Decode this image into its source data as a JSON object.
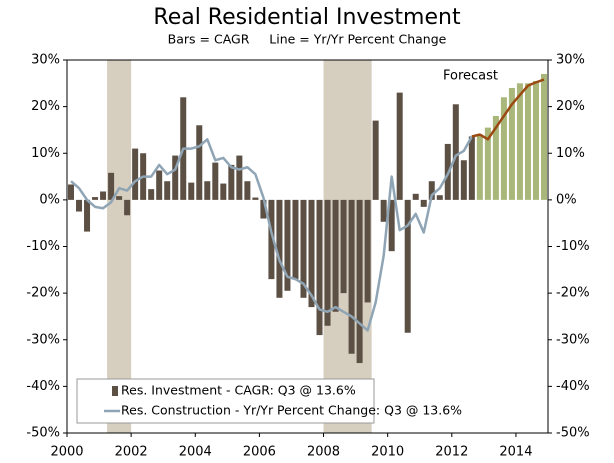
{
  "chart_data": {
    "type": "bar",
    "title": "Real Residential Investment",
    "subtitle": "Bars = CAGR     Line = Yr/Yr Percent Change",
    "annotation": "Forecast",
    "x": [
      2000.125,
      2000.375,
      2000.625,
      2000.875,
      2001.125,
      2001.375,
      2001.625,
      2001.875,
      2002.125,
      2002.375,
      2002.625,
      2002.875,
      2003.125,
      2003.375,
      2003.625,
      2003.875,
      2004.125,
      2004.375,
      2004.625,
      2004.875,
      2005.125,
      2005.375,
      2005.625,
      2005.875,
      2006.125,
      2006.375,
      2006.625,
      2006.875,
      2007.125,
      2007.375,
      2007.625,
      2007.875,
      2008.125,
      2008.375,
      2008.625,
      2008.875,
      2009.125,
      2009.375,
      2009.625,
      2009.875,
      2010.125,
      2010.375,
      2010.625,
      2010.875,
      2011.125,
      2011.375,
      2011.625,
      2011.875,
      2012.125,
      2012.375,
      2012.625,
      2012.875,
      2013.125,
      2013.375,
      2013.625,
      2013.875,
      2014.125,
      2014.375,
      2014.625,
      2014.875
    ],
    "xlim": [
      2000,
      2015
    ],
    "xticks": [
      2000,
      2002,
      2004,
      2006,
      2008,
      2010,
      2012,
      2014
    ],
    "ylim": [
      -50,
      30
    ],
    "yticks": [
      {
        "value": -50,
        "label": "-50%"
      },
      {
        "value": -40,
        "label": "-40%"
      },
      {
        "value": -30,
        "label": "-30%"
      },
      {
        "value": -20,
        "label": "-20%"
      },
      {
        "value": -10,
        "label": "-10%"
      },
      {
        "value": 0,
        "label": "0%"
      },
      {
        "value": 10,
        "label": "10%"
      },
      {
        "value": 20,
        "label": "20%"
      },
      {
        "value": 30,
        "label": "30%"
      }
    ],
    "y2lim": [
      -50,
      30
    ],
    "y2ticks": [
      {
        "value": -50,
        "label": "-50%"
      },
      {
        "value": -40,
        "label": "-40%"
      },
      {
        "value": -30,
        "label": "-30%"
      },
      {
        "value": -20,
        "label": "-20%"
      },
      {
        "value": -10,
        "label": "-10%"
      },
      {
        "value": 0,
        "label": "0%"
      },
      {
        "value": 10,
        "label": "10%"
      },
      {
        "value": 20,
        "label": "20%"
      },
      {
        "value": 30,
        "label": "30%"
      }
    ],
    "shaded_regions": [
      [
        2001.25,
        2002
      ],
      [
        2008,
        2009.5
      ]
    ],
    "shade_color": "#d6cfc0",
    "legend": "lower left",
    "series": [
      {
        "name": "Res. Investment - CAGR: Q3 @ 13.6%",
        "type": "bar",
        "color": "#5c4f44",
        "values": [
          3.3,
          -2.5,
          -6.8,
          0.6,
          1.8,
          5.8,
          0.8,
          -3.3,
          11,
          10,
          2.3,
          6.3,
          4,
          9.5,
          22,
          3.7,
          16,
          4,
          8,
          3.5,
          7.5,
          9.5,
          4,
          0.5,
          -4,
          -17,
          -21,
          -19.5,
          -17,
          -21,
          -23,
          -29,
          -27,
          -24,
          -20,
          -33,
          -35,
          -22,
          17,
          -4.7,
          -11,
          23,
          -28.5,
          1.3,
          -1.5,
          4,
          1,
          12,
          20.5,
          8.5,
          13.6,
          null,
          null,
          null,
          null,
          null,
          null,
          null,
          null,
          null
        ]
      },
      {
        "type": "bar",
        "color": "#a9b77a",
        "values": [
          null,
          null,
          null,
          null,
          null,
          null,
          null,
          null,
          null,
          null,
          null,
          null,
          null,
          null,
          null,
          null,
          null,
          null,
          null,
          null,
          null,
          null,
          null,
          null,
          null,
          null,
          null,
          null,
          null,
          null,
          null,
          null,
          null,
          null,
          null,
          null,
          null,
          null,
          null,
          null,
          null,
          null,
          null,
          null,
          null,
          null,
          null,
          null,
          null,
          null,
          null,
          14,
          15.5,
          18,
          22,
          24,
          25,
          25,
          25.5,
          27
        ]
      },
      {
        "name": "Res. Construction - Yr/Yr Percent Change: Q3 @ 13.6%",
        "type": "line",
        "color": "#8fa5b5",
        "values": [
          4,
          2.5,
          0,
          -1.5,
          -1.8,
          -0.5,
          2.5,
          2,
          4,
          5,
          5,
          7.5,
          5.5,
          6.5,
          11,
          11,
          11.5,
          13,
          8.5,
          9,
          7,
          6.5,
          7,
          5.5,
          0.5,
          -7,
          -13,
          -16.5,
          -17,
          -18,
          -20.5,
          -23.5,
          -24,
          -23,
          -24,
          -25,
          -26.5,
          -28,
          -22,
          -12,
          5,
          -6.5,
          -5.5,
          -3,
          -7,
          1,
          2.5,
          5.5,
          9.5,
          10.5,
          13.6,
          null,
          null,
          null,
          null,
          null,
          null,
          null,
          null,
          null
        ]
      },
      {
        "type": "line",
        "color": "#9a4a12",
        "values": [
          null,
          null,
          null,
          null,
          null,
          null,
          null,
          null,
          null,
          null,
          null,
          null,
          null,
          null,
          null,
          null,
          null,
          null,
          null,
          null,
          null,
          null,
          null,
          null,
          null,
          null,
          null,
          null,
          null,
          null,
          null,
          null,
          null,
          null,
          null,
          null,
          null,
          null,
          null,
          null,
          null,
          null,
          null,
          null,
          null,
          null,
          null,
          null,
          null,
          null,
          13.6,
          14,
          13,
          15.5,
          18,
          20.5,
          22.5,
          24.5,
          25.2,
          25.8
        ]
      }
    ]
  }
}
